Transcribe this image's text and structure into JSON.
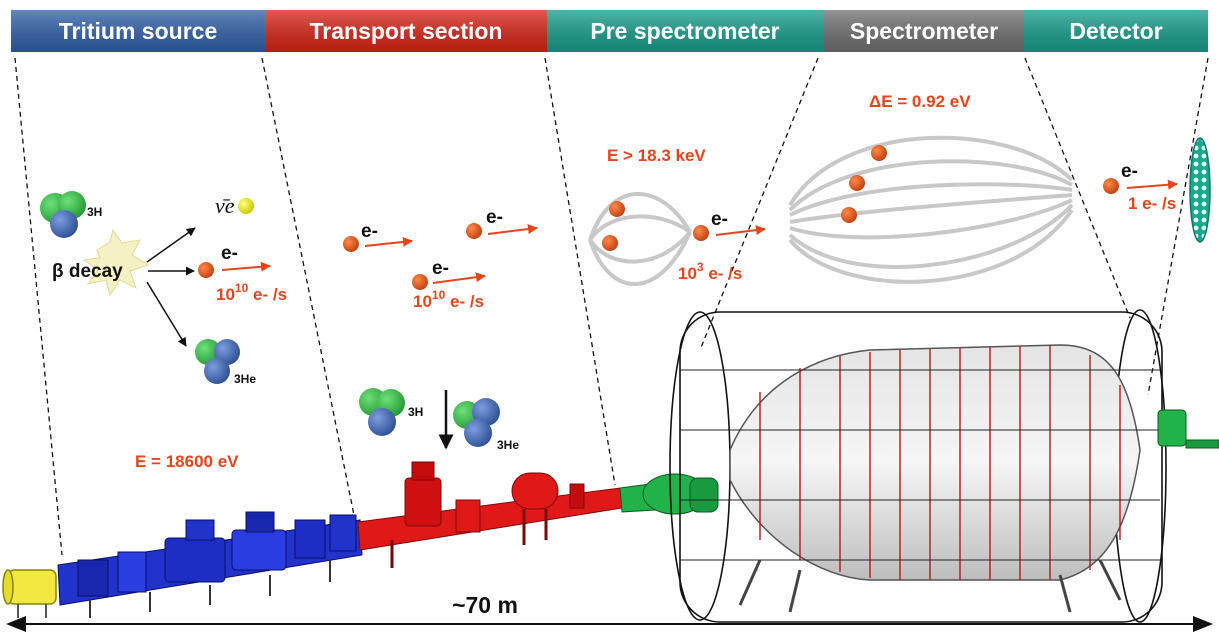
{
  "sections": [
    {
      "label": "Tritium source",
      "color": "#2f5fa8"
    },
    {
      "label": "Transport section",
      "color": "#d62316"
    },
    {
      "label": "Pre spectrometer",
      "color": "#169c8a"
    },
    {
      "label": "Spectrometer",
      "color": "#6f6f6f"
    },
    {
      "label": "Detector",
      "color": "#169c8a"
    }
  ],
  "source": {
    "tritium": "3H",
    "helium": "3He",
    "decay": "β decay",
    "neutrino": "ν̄e",
    "electron": "e-",
    "rate_base": "10",
    "rate_exp": "10",
    "rate_unit": " e- /s",
    "energy": "E = 18600 eV"
  },
  "transport": {
    "electron": "e-",
    "rate_base": "10",
    "rate_exp": "10",
    "rate_unit": " e- /s",
    "tritium": "3H",
    "helium": "3He"
  },
  "prespec": {
    "threshold": "E > 18.3 keV",
    "electron": "e-",
    "rate_base": "10",
    "rate_exp": "3",
    "rate_unit": " e- /s"
  },
  "spectrometer": {
    "resolution": "ΔE = 0.92 eV"
  },
  "detector": {
    "electron": "e-",
    "rate": "1 e- /s"
  },
  "scale": "~70 m",
  "colors": {
    "electron": "#d9531e",
    "tritium_green": "#3cb24a",
    "tritium_blue": "#3c5ea8",
    "source_beam": "#2233cc",
    "transport_beam": "#e01818",
    "prespec_vessel": "#22b24a",
    "field_lines": "#c8c8c8"
  }
}
